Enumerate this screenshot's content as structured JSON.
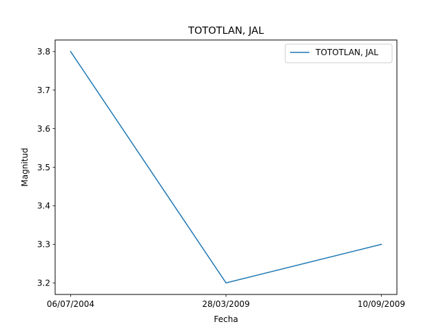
{
  "chart_data": {
    "type": "line",
    "title": "TOTOTLAN, JAL",
    "xlabel": "Fecha",
    "ylabel": "Magnitud",
    "categories": [
      "06/07/2004",
      "28/03/2009",
      "10/09/2009"
    ],
    "series": [
      {
        "name": "TOTOTLAN, JAL",
        "values": [
          3.8,
          3.2,
          3.3
        ],
        "color": "#1f77b4"
      }
    ],
    "ylim": [
      3.17,
      3.83
    ],
    "yticks": [
      3.2,
      3.3,
      3.4,
      3.5,
      3.6,
      3.7,
      3.8
    ],
    "ytick_labels": [
      "3.2",
      "3.3",
      "3.4",
      "3.5",
      "3.6",
      "3.7",
      "3.8"
    ],
    "grid": false,
    "legend_position": "top-right"
  }
}
